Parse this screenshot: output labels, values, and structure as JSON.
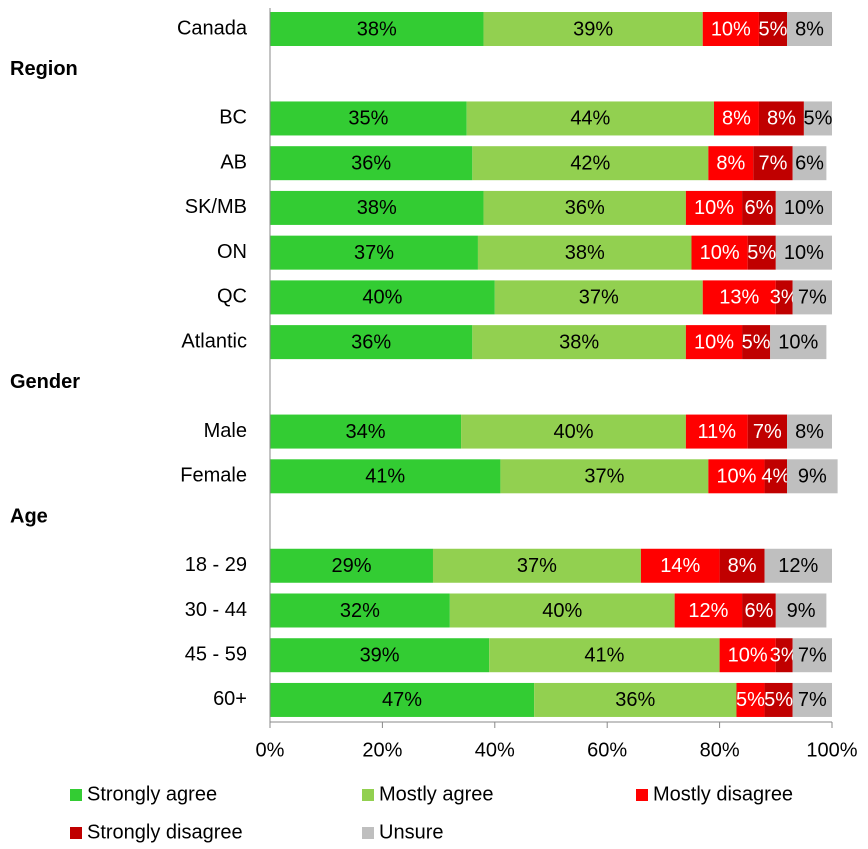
{
  "chart_data": {
    "type": "stacked_bar_horizontal",
    "categories": [
      "Canada",
      "Region",
      "BC",
      "AB",
      "SK/MB",
      "ON",
      "QC",
      "Atlantic",
      "Gender",
      "Male",
      "Female",
      "Age",
      "18 - 29",
      "30 - 44",
      "45 - 59",
      "60+"
    ],
    "series": [
      {
        "name": "Strongly agree",
        "color": "#33cc33",
        "label_color": "#000000",
        "values": [
          38,
          null,
          35,
          36,
          38,
          37,
          40,
          36,
          null,
          34,
          41,
          null,
          29,
          32,
          39,
          47
        ],
        "value_labels": [
          "38%",
          null,
          "35%",
          "36%",
          "38%",
          "37%",
          "40%",
          "36%",
          null,
          "34%",
          "41%",
          null,
          "29%",
          "32%",
          "39%",
          "47%"
        ]
      },
      {
        "name": "Mostly agree",
        "color": "#92d050",
        "label_color": "#000000",
        "values": [
          39,
          null,
          44,
          42,
          36,
          38,
          37,
          38,
          null,
          40,
          37,
          null,
          37,
          40,
          41,
          36
        ],
        "value_labels": [
          "39%",
          null,
          "44%",
          "42%",
          "36%",
          "38%",
          "37%",
          "38%",
          null,
          "40%",
          "37%",
          null,
          "37%",
          "40%",
          "41%",
          "36%"
        ]
      },
      {
        "name": "Mostly disagree",
        "color": "#ff0000",
        "label_color": "#ffffff",
        "values": [
          10,
          null,
          8,
          8,
          10,
          10,
          13,
          10,
          null,
          11,
          10,
          null,
          14,
          12,
          10,
          5
        ],
        "value_labels": [
          "10%",
          null,
          "8%",
          "8%",
          "10%",
          "10%",
          "13%",
          "10%",
          null,
          "11%",
          "10%",
          null,
          "14%",
          "12%",
          "10%",
          "5%"
        ]
      },
      {
        "name": "Strongly disagree",
        "color": "#c00000",
        "label_color": "#ffffff",
        "values": [
          5,
          null,
          8,
          7,
          6,
          5,
          3,
          5,
          null,
          7,
          4,
          null,
          8,
          6,
          3,
          5
        ],
        "value_labels": [
          "5%",
          null,
          "8%",
          "7%",
          "6%",
          "5%",
          "3%",
          "5%",
          null,
          "7%",
          "4%",
          null,
          "8%",
          "6%",
          "3%",
          "5%"
        ]
      },
      {
        "name": "Unsure",
        "color": "#bfbfbf",
        "label_color": "#000000",
        "values": [
          8,
          null,
          5,
          6,
          10,
          10,
          7,
          10,
          null,
          8,
          9,
          null,
          12,
          9,
          7,
          7
        ],
        "value_labels": [
          "8%",
          null,
          "5%",
          "6%",
          "10%",
          "10%",
          "7%",
          "10%",
          null,
          "8%",
          "9%",
          null,
          "12%",
          "9%",
          "7%",
          "7%"
        ]
      }
    ],
    "xlim": [
      0,
      100
    ],
    "xticks": [
      {
        "value": 0,
        "label": "0%"
      },
      {
        "value": 20,
        "label": "20%"
      },
      {
        "value": 40,
        "label": "40%"
      },
      {
        "value": 60,
        "label": "60%"
      },
      {
        "value": 80,
        "label": "80%"
      },
      {
        "value": 100,
        "label": "100%"
      }
    ],
    "legend": "bottom"
  }
}
